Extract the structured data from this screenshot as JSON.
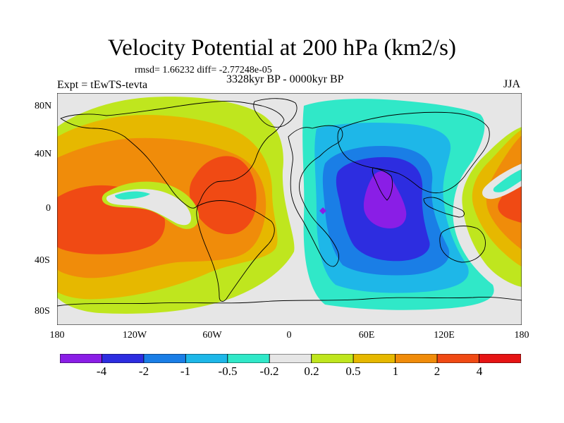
{
  "title": "Velocity Potential at 200 hPa (km2/s)",
  "stats_line": "rmsd= 1.66232 diff= -2.77248e-05",
  "experiment": "Expt = tEwTS-tevta",
  "time_span": "3328kyr BP - 0000kyr BP",
  "season": "JJA",
  "lat_labels": [
    "80N",
    "40N",
    "0",
    "40S",
    "80S"
  ],
  "lon_labels": [
    "180",
    "120W",
    "60W",
    "0",
    "60E",
    "120E",
    "180"
  ],
  "colorbar": {
    "colors": [
      "#8a1ee6",
      "#2d2de0",
      "#1a7ee6",
      "#1eb7e8",
      "#30e8c8",
      "#e6e6e6",
      "#bfe61e",
      "#e6b800",
      "#f08c0a",
      "#f04a14",
      "#e61414"
    ],
    "labels": [
      "-4",
      "-2",
      "-1",
      "-0.5",
      "-0.2",
      "0.2",
      "0.5",
      "1",
      "2",
      "4"
    ]
  }
}
